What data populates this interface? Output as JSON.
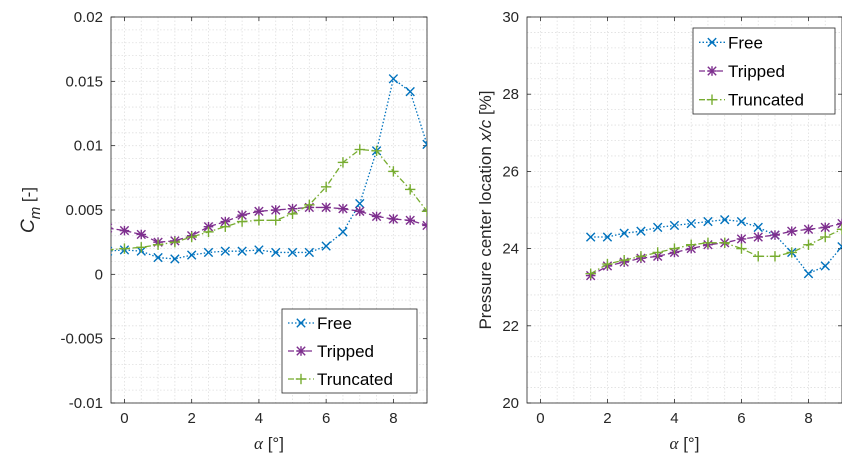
{
  "colors": {
    "Free": "#0072BD",
    "Tripped": "#7E2F8E",
    "Truncated": "#77AC30"
  },
  "chart_data": [
    {
      "type": "line",
      "ylabel_main": "C",
      "ylabel_sub": "m",
      "ylabel_unit": " [-]",
      "xlabel_sym": "α",
      "xlabel_unit": " [°]",
      "xlim": [
        -0.4,
        9
      ],
      "ylim": [
        -0.01,
        0.02
      ],
      "xticks": [
        0,
        2,
        4,
        6,
        8
      ],
      "xtick_labels": [
        "0",
        "2",
        "4",
        "6",
        "8"
      ],
      "yticks": [
        -0.01,
        -0.005,
        0,
        0.005,
        0.01,
        0.015,
        0.02
      ],
      "ytick_labels": [
        "-0.01",
        "-0.005",
        "0",
        "0.005",
        "0.01",
        "0.015",
        "0.02"
      ],
      "grid": true,
      "legend_position": "bottom-right",
      "series": [
        {
          "name": "Free",
          "marker": "x",
          "line": "dotted",
          "x": [
            -0.5,
            0,
            0.5,
            1,
            1.5,
            2,
            2.5,
            3,
            3.5,
            4,
            4.5,
            5,
            5.5,
            6,
            6.5,
            7,
            7.5,
            8,
            8.5,
            9
          ],
          "y": [
            0.0018,
            0.0019,
            0.0018,
            0.0013,
            0.0012,
            0.0015,
            0.0017,
            0.0018,
            0.0018,
            0.0019,
            0.0017,
            0.0017,
            0.0017,
            0.0022,
            0.0033,
            0.0055,
            0.0096,
            0.0152,
            0.0142,
            0.0101
          ]
        },
        {
          "name": "Tripped",
          "marker": "asterisk",
          "line": "dashed",
          "x": [
            -0.5,
            0,
            0.5,
            1,
            1.5,
            2,
            2.5,
            3,
            3.5,
            4,
            4.5,
            5,
            5.5,
            6,
            6.5,
            7,
            7.5,
            8,
            8.5,
            9
          ],
          "y": [
            0.0036,
            0.0034,
            0.0031,
            0.0025,
            0.0026,
            0.003,
            0.0037,
            0.0041,
            0.0046,
            0.0049,
            0.005,
            0.0051,
            0.0052,
            0.0052,
            0.0051,
            0.0049,
            0.0045,
            0.0043,
            0.0042,
            0.0038
          ]
        },
        {
          "name": "Truncated",
          "marker": "plus",
          "line": "dashdot",
          "x": [
            -0.5,
            0,
            0.5,
            1,
            1.5,
            2,
            2.5,
            3,
            3.5,
            4,
            4.5,
            5,
            5.5,
            6,
            6.5,
            7,
            7.5,
            8,
            8.5,
            9
          ],
          "y": [
            0.0019,
            0.002,
            0.0021,
            0.0023,
            0.0025,
            0.0029,
            0.0033,
            0.0037,
            0.0041,
            0.0042,
            0.0042,
            0.0047,
            0.0054,
            0.0068,
            0.0087,
            0.0097,
            0.0096,
            0.008,
            0.0066,
            0.0049
          ]
        }
      ]
    },
    {
      "type": "line",
      "ylabel_text": "Pressure center location  ",
      "ylabel_italic": "x/c",
      "ylabel_unit": " [%]",
      "xlabel_sym": "α",
      "xlabel_unit": " [°]",
      "xlim": [
        -0.4,
        9
      ],
      "ylim": [
        20,
        30
      ],
      "xticks": [
        0,
        2,
        4,
        6,
        8
      ],
      "xtick_labels": [
        "0",
        "2",
        "4",
        "6",
        "8"
      ],
      "yticks": [
        20,
        22,
        24,
        26,
        28,
        30
      ],
      "ytick_labels": [
        "20",
        "22",
        "24",
        "26",
        "28",
        "30"
      ],
      "grid": true,
      "legend_position": "top-right",
      "series": [
        {
          "name": "Free",
          "marker": "x",
          "line": "dotted",
          "x": [
            1.5,
            2,
            2.5,
            3,
            3.5,
            4,
            4.5,
            5,
            5.5,
            6,
            6.5,
            7,
            7.5,
            8,
            8.5,
            9
          ],
          "y": [
            24.3,
            24.3,
            24.4,
            24.45,
            24.55,
            24.6,
            24.65,
            24.7,
            24.75,
            24.7,
            24.55,
            24.35,
            23.9,
            23.35,
            23.55,
            24.05
          ]
        },
        {
          "name": "Tripped",
          "marker": "asterisk",
          "line": "dashed",
          "x": [
            1.5,
            2,
            2.5,
            3,
            3.5,
            4,
            4.5,
            5,
            5.5,
            6,
            6.5,
            7,
            7.5,
            8,
            8.5,
            9
          ],
          "y": [
            23.3,
            23.55,
            23.65,
            23.75,
            23.8,
            23.9,
            24.0,
            24.1,
            24.15,
            24.25,
            24.3,
            24.35,
            24.45,
            24.5,
            24.55,
            24.65
          ]
        },
        {
          "name": "Truncated",
          "marker": "plus",
          "line": "dashdot",
          "x": [
            1.5,
            2,
            2.5,
            3,
            3.5,
            4,
            4.5,
            5,
            5.5,
            6,
            6.5,
            7,
            7.5,
            8,
            8.5,
            9
          ],
          "y": [
            23.35,
            23.6,
            23.7,
            23.8,
            23.9,
            24.0,
            24.1,
            24.15,
            24.15,
            24.0,
            23.8,
            23.8,
            23.9,
            24.1,
            24.3,
            24.5
          ]
        }
      ]
    }
  ]
}
